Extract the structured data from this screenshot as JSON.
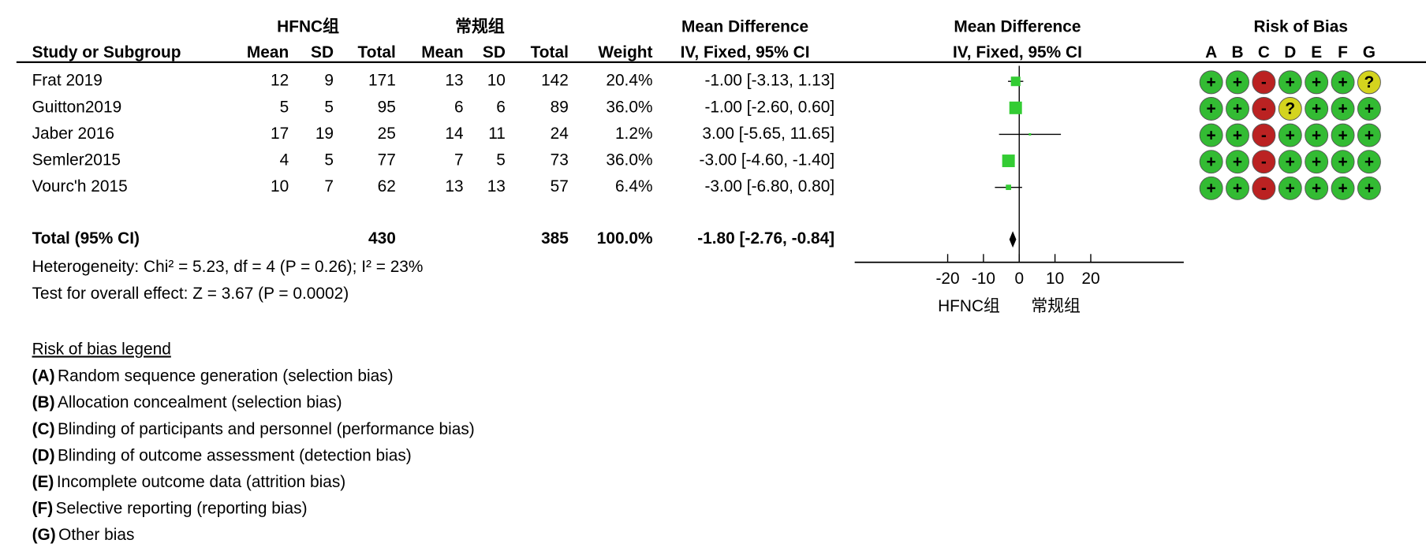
{
  "chart_data": {
    "type": "forest",
    "headers": {
      "group1": "HFNC组",
      "group2": "常规组",
      "effect_title": "Mean Difference",
      "effect_method": "IV, Fixed, 95% CI",
      "plot_title": "Mean Difference",
      "plot_method": "IV, Fixed, 95% CI",
      "rob_title": "Risk of Bias",
      "study": "Study or Subgroup",
      "mean1": "Mean",
      "sd1": "SD",
      "total1": "Total",
      "mean2": "Mean",
      "sd2": "SD",
      "total2": "Total",
      "weight": "Weight"
    },
    "studies": [
      "Frat 2019",
      "Guitton2019",
      "Jaber 2016",
      "Semler2015",
      "Vourc'h 2015"
    ],
    "hfnc_mean": [
      12,
      5,
      17,
      4,
      10
    ],
    "hfnc_sd": [
      9,
      5,
      19,
      5,
      7
    ],
    "hfnc_total": [
      171,
      95,
      25,
      77,
      62
    ],
    "ctrl_mean": [
      13,
      6,
      14,
      7,
      13
    ],
    "ctrl_sd": [
      10,
      6,
      11,
      5,
      13
    ],
    "ctrl_total": [
      142,
      89,
      24,
      73,
      57
    ],
    "weight": [
      20.4,
      36,
      1.2,
      36,
      6.4
    ],
    "weight_labels": [
      "20.4%",
      "36.0%",
      "1.2%",
      "36.0%",
      "6.4%"
    ],
    "md": [
      -1,
      -1,
      3,
      -3,
      -3
    ],
    "ci_low": [
      -3.13,
      -2.6,
      -5.65,
      -4.6,
      -6.8
    ],
    "ci_high": [
      1.13,
      0.6,
      11.65,
      -1.4,
      0.8
    ],
    "ci_labels": [
      "-1.00 [-3.13, 1.13]",
      "-1.00 [-2.60, 0.60]",
      "3.00 [-5.65, 11.65]",
      "-3.00 [-4.60, -1.40]",
      "-3.00 [-6.80, 0.80]"
    ],
    "total": {
      "label": "Total (95% CI)",
      "hfnc_total": 430,
      "ctrl_total": 385,
      "weight": 100,
      "weight_label": "100.0%",
      "md": -1.8,
      "ci_low": -2.76,
      "ci_high": -0.84,
      "ci_label": "-1.80 [-2.76, -0.84]"
    },
    "heterogeneity": "Heterogeneity: Chi² = 5.23, df = 4 (P = 0.26); I² = 23%",
    "overall_effect": "Test for overall effect: Z = 3.67 (P = 0.0002)",
    "xlim": [
      -46,
      46
    ],
    "xticks": [
      -20,
      -10,
      0,
      10,
      20
    ],
    "favours_left": "HFNC组",
    "favours_right": "常规组",
    "square_color": "#33cc33",
    "rob_domains": [
      "A",
      "B",
      "C",
      "D",
      "E",
      "F",
      "G"
    ],
    "rob": [
      [
        "+",
        "+",
        "-",
        "+",
        "+",
        "+",
        "?"
      ],
      [
        "+",
        "+",
        "-",
        "?",
        "+",
        "+",
        "+"
      ],
      [
        "+",
        "+",
        "-",
        "+",
        "+",
        "+",
        "+"
      ],
      [
        "+",
        "+",
        "-",
        "+",
        "+",
        "+",
        "+"
      ],
      [
        "+",
        "+",
        "-",
        "+",
        "+",
        "+",
        "+"
      ]
    ],
    "rob_colors": {
      "+": "#33bb33",
      "-": "#bb2222",
      "?": "#d4d41e"
    },
    "rob_legend": {
      "title": "Risk of bias legend",
      "items": [
        {
          "letter": "(A)",
          "text": "Random sequence generation (selection bias)"
        },
        {
          "letter": "(B)",
          "text": "Allocation concealment (selection bias)"
        },
        {
          "letter": "(C)",
          "text": "Blinding of participants and personnel (performance bias)"
        },
        {
          "letter": "(D)",
          "text": "Blinding of outcome assessment (detection bias)"
        },
        {
          "letter": "(E)",
          "text": "Incomplete outcome data (attrition bias)"
        },
        {
          "letter": "(F)",
          "text": "Selective reporting (reporting bias)"
        },
        {
          "letter": "(G)",
          "text": "Other bias"
        }
      ]
    }
  }
}
